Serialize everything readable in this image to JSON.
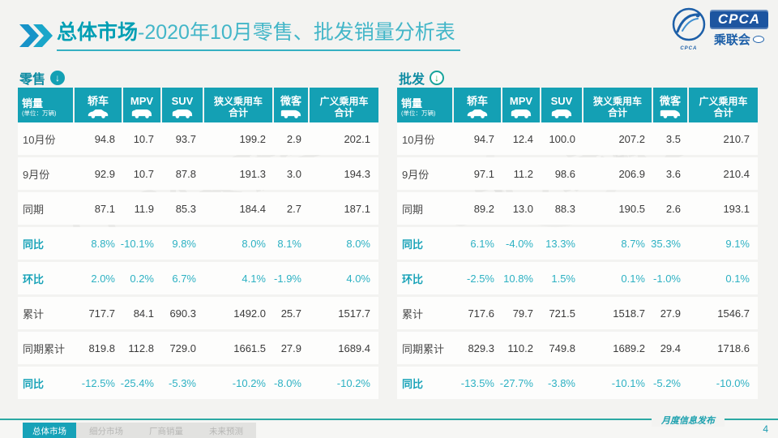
{
  "header": {
    "title_bold": "总体市场",
    "title_rest": "-2020年10月零售、批发销量分析表",
    "logo": {
      "acronym": "CPCA",
      "acronym_small": "CPCA",
      "cn_name": "乘联会"
    }
  },
  "columns": [
    {
      "key": "sales-volume",
      "lines": [
        "销量"
      ],
      "sub": "(单位：万辆)",
      "icon": null
    },
    {
      "key": "sedan",
      "lines": [
        "轿车"
      ],
      "sub": null,
      "icon": "sedan-car-icon"
    },
    {
      "key": "mpv",
      "lines": [
        "MPV"
      ],
      "sub": null,
      "icon": "mpv-car-icon"
    },
    {
      "key": "suv",
      "lines": [
        "SUV"
      ],
      "sub": null,
      "icon": "suv-car-icon"
    },
    {
      "key": "narrow-total",
      "lines": [
        "狭义乘用车",
        "合计"
      ],
      "sub": null,
      "icon": null
    },
    {
      "key": "microvan",
      "lines": [
        "微客"
      ],
      "sub": null,
      "icon": "microvan-car-icon"
    },
    {
      "key": "broad-total",
      "lines": [
        "广义乘用车",
        "合计"
      ],
      "sub": null,
      "icon": null
    }
  ],
  "tables": [
    {
      "name": "零售",
      "arrow_icon": "down-arrow-circle-icon",
      "rows": [
        {
          "label": "10月份",
          "kind": "num",
          "values": [
            "94.8",
            "10.7",
            "93.7",
            "199.2",
            "2.9",
            "202.1"
          ]
        },
        {
          "label": "9月份",
          "kind": "num",
          "values": [
            "92.9",
            "10.7",
            "87.8",
            "191.3",
            "3.0",
            "194.3"
          ]
        },
        {
          "label": "同期",
          "kind": "num",
          "values": [
            "87.1",
            "11.9",
            "85.3",
            "184.4",
            "2.7",
            "187.1"
          ]
        },
        {
          "label": "同比",
          "kind": "pct",
          "values": [
            "8.8%",
            "-10.1%",
            "9.8%",
            "8.0%",
            "8.1%",
            "8.0%"
          ]
        },
        {
          "label": "环比",
          "kind": "pct",
          "values": [
            "2.0%",
            "0.2%",
            "6.7%",
            "4.1%",
            "-1.9%",
            "4.0%"
          ]
        },
        {
          "label": "累计",
          "kind": "num",
          "values": [
            "717.7",
            "84.1",
            "690.3",
            "1492.0",
            "25.7",
            "1517.7"
          ]
        },
        {
          "label": "同期累计",
          "kind": "num",
          "values": [
            "819.8",
            "112.8",
            "729.0",
            "1661.5",
            "27.9",
            "1689.4"
          ]
        },
        {
          "label": "同比",
          "kind": "pct",
          "values": [
            "-12.5%",
            "-25.4%",
            "-5.3%",
            "-10.2%",
            "-8.0%",
            "-10.2%"
          ]
        }
      ]
    },
    {
      "name": "批发",
      "arrow_icon": "down-arrow-circle-icon",
      "rows": [
        {
          "label": "10月份",
          "kind": "num",
          "values": [
            "94.7",
            "12.4",
            "100.0",
            "207.2",
            "3.5",
            "210.7"
          ]
        },
        {
          "label": "9月份",
          "kind": "num",
          "values": [
            "97.1",
            "11.2",
            "98.6",
            "206.9",
            "3.6",
            "210.4"
          ]
        },
        {
          "label": "同期",
          "kind": "num",
          "values": [
            "89.2",
            "13.0",
            "88.3",
            "190.5",
            "2.6",
            "193.1"
          ]
        },
        {
          "label": "同比",
          "kind": "pct",
          "values": [
            "6.1%",
            "-4.0%",
            "13.3%",
            "8.7%",
            "35.3%",
            "9.1%"
          ]
        },
        {
          "label": "环比",
          "kind": "pct",
          "values": [
            "-2.5%",
            "10.8%",
            "1.5%",
            "0.1%",
            "-1.0%",
            "0.1%"
          ]
        },
        {
          "label": "累计",
          "kind": "num",
          "values": [
            "717.6",
            "79.7",
            "721.5",
            "1518.7",
            "27.9",
            "1546.7"
          ]
        },
        {
          "label": "同期累计",
          "kind": "num",
          "values": [
            "829.3",
            "110.2",
            "749.8",
            "1689.2",
            "29.4",
            "1718.6"
          ]
        },
        {
          "label": "同比",
          "kind": "pct",
          "values": [
            "-13.5%",
            "-27.7%",
            "-3.8%",
            "-10.1%",
            "-5.2%",
            "-10.0%"
          ]
        }
      ]
    }
  ],
  "chart_data": [
    {
      "type": "table",
      "title": "零售",
      "unit": "万辆",
      "columns": [
        "轿车",
        "MPV",
        "SUV",
        "狭义乘用车合计",
        "微客",
        "广义乘用车合计"
      ],
      "rows": {
        "10月份": [
          94.8,
          10.7,
          93.7,
          199.2,
          2.9,
          202.1
        ],
        "9月份": [
          92.9,
          10.7,
          87.8,
          191.3,
          3.0,
          194.3
        ],
        "同期": [
          87.1,
          11.9,
          85.3,
          184.4,
          2.7,
          187.1
        ],
        "同比": [
          "8.8%",
          "-10.1%",
          "9.8%",
          "8.0%",
          "8.1%",
          "8.0%"
        ],
        "环比": [
          "2.0%",
          "0.2%",
          "6.7%",
          "4.1%",
          "-1.9%",
          "4.0%"
        ],
        "累计": [
          717.7,
          84.1,
          690.3,
          1492.0,
          25.7,
          1517.7
        ],
        "同期累计": [
          819.8,
          112.8,
          729.0,
          1661.5,
          27.9,
          1689.4
        ],
        "累计同比": [
          "-12.5%",
          "-25.4%",
          "-5.3%",
          "-10.2%",
          "-8.0%",
          "-10.2%"
        ]
      }
    },
    {
      "type": "table",
      "title": "批发",
      "unit": "万辆",
      "columns": [
        "轿车",
        "MPV",
        "SUV",
        "狭义乘用车合计",
        "微客",
        "广义乘用车合计"
      ],
      "rows": {
        "10月份": [
          94.7,
          12.4,
          100.0,
          207.2,
          3.5,
          210.7
        ],
        "9月份": [
          97.1,
          11.2,
          98.6,
          206.9,
          3.6,
          210.4
        ],
        "同期": [
          89.2,
          13.0,
          88.3,
          190.5,
          2.6,
          193.1
        ],
        "同比": [
          "6.1%",
          "-4.0%",
          "13.3%",
          "8.7%",
          "35.3%",
          "9.1%"
        ],
        "环比": [
          "-2.5%",
          "10.8%",
          "1.5%",
          "0.1%",
          "-1.0%",
          "0.1%"
        ],
        "累计": [
          717.6,
          79.7,
          721.5,
          1518.7,
          27.9,
          1546.7
        ],
        "同期累计": [
          829.3,
          110.2,
          749.8,
          1689.2,
          29.4,
          1718.6
        ],
        "累计同比": [
          "-13.5%",
          "-27.7%",
          "-3.8%",
          "-10.1%",
          "-5.2%",
          "-10.0%"
        ]
      }
    }
  ],
  "footer": {
    "tabs": [
      {
        "label": "总体市场",
        "active": true
      },
      {
        "label": "细分市场",
        "active": false
      },
      {
        "label": "厂商销量",
        "active": false
      },
      {
        "label": "未来预测",
        "active": false
      }
    ],
    "publication_label": "月度信息发布",
    "page_number": "4"
  },
  "colors": {
    "header_teal": "#14a0b4",
    "title_teal": "#009fb4",
    "pct_teal": "#2db1c3",
    "logo_blue": "#1d55a0",
    "footer_line": "#2ba9a4"
  }
}
